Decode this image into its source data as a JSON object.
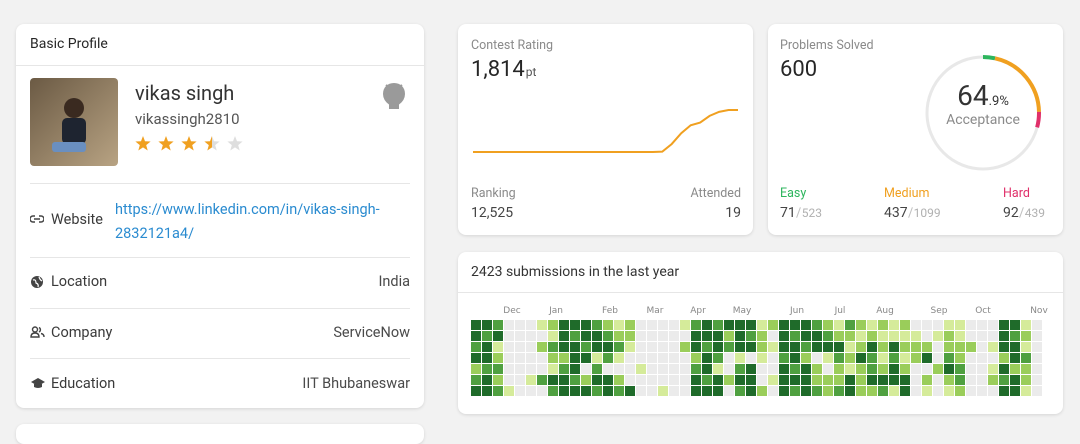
{
  "basic_profile": {
    "title": "Basic Profile",
    "name": "vikas singh",
    "username": "vikassingh2810",
    "stars": 3.5,
    "rows": [
      {
        "label": "Website",
        "value": "https://www.linkedin.com/in/vikas-singh-2832121a4/"
      },
      {
        "label": "Location",
        "value": "India"
      },
      {
        "label": "Company",
        "value": "ServiceNow"
      },
      {
        "label": "Education",
        "value": "IIT Bhubaneswar"
      }
    ]
  },
  "contest": {
    "title": "Contest Rating",
    "rating": "1,814",
    "unit": "pt",
    "ranking_label": "Ranking",
    "ranking": "12,525",
    "attended_label": "Attended",
    "attended": 19,
    "rating_history": [
      1500,
      1500,
      1500,
      1500,
      1500,
      1500,
      1500,
      1500,
      1500,
      1500,
      1500,
      1500,
      1500,
      1500,
      1500,
      1500,
      1500,
      1500,
      1500,
      1500,
      1503,
      1560,
      1640,
      1700,
      1720,
      1770,
      1800,
      1814,
      1814
    ]
  },
  "problems": {
    "title": "Problems Solved",
    "solved": 600,
    "acceptance_int": "64",
    "acceptance_frac": ".9%",
    "acceptance_label": "Acceptance",
    "levels": [
      {
        "name": "Easy",
        "solved": 71,
        "total": 523,
        "color": "#2db55d"
      },
      {
        "name": "Medium",
        "solved": 437,
        "total": 1099,
        "color": "#f0a020"
      },
      {
        "name": "Hard",
        "solved": 92,
        "total": 439,
        "color": "#e0306a"
      }
    ]
  },
  "heatmap": {
    "title": "2423 submissions in the last year",
    "months": [
      "Dec",
      "Jan",
      "Feb",
      "Mar",
      "Apr",
      "May",
      "Jun",
      "Jul",
      "Aug",
      "Sep",
      "Oct",
      "Nov"
    ],
    "colors": [
      "#ebebeb",
      "#d5eb9a",
      "#9acd5a",
      "#4fa040",
      "#1f6b2a"
    ],
    "weeks": [
      [
        4,
        4,
        3,
        4,
        2,
        3,
        4
      ],
      [
        4,
        3,
        4,
        4,
        3,
        4,
        4
      ],
      [
        3,
        4,
        1,
        2,
        3,
        2,
        3
      ],
      [
        0,
        0,
        0,
        0,
        0,
        0,
        1
      ],
      [
        0,
        0,
        0,
        0,
        0,
        0,
        0
      ],
      [
        0,
        0,
        0,
        0,
        0,
        1,
        0
      ],
      [
        1,
        0,
        2,
        0,
        0,
        3,
        0
      ],
      [
        2,
        1,
        3,
        2,
        1,
        4,
        3
      ],
      [
        4,
        4,
        4,
        2,
        3,
        4,
        4
      ],
      [
        4,
        3,
        4,
        4,
        4,
        3,
        4
      ],
      [
        4,
        4,
        3,
        4,
        0,
        2,
        4
      ],
      [
        3,
        4,
        4,
        1,
        3,
        4,
        3
      ],
      [
        2,
        3,
        4,
        3,
        0,
        4,
        4
      ],
      [
        1,
        2,
        3,
        1,
        0,
        2,
        3
      ],
      [
        2,
        2,
        1,
        0,
        0,
        0,
        4
      ],
      [
        0,
        0,
        0,
        0,
        1,
        0,
        0
      ],
      [
        0,
        0,
        0,
        0,
        0,
        0,
        0
      ],
      [
        0,
        0,
        0,
        0,
        0,
        0,
        1
      ],
      [
        0,
        0,
        0,
        0,
        0,
        0,
        0
      ],
      [
        1,
        0,
        2,
        0,
        0,
        0,
        0
      ],
      [
        3,
        4,
        4,
        2,
        3,
        4,
        4
      ],
      [
        4,
        4,
        3,
        4,
        4,
        3,
        4
      ],
      [
        3,
        4,
        4,
        3,
        1,
        4,
        4
      ],
      [
        4,
        2,
        3,
        0,
        0,
        2,
        0
      ],
      [
        4,
        4,
        4,
        1,
        3,
        4,
        3
      ],
      [
        4,
        3,
        4,
        0,
        4,
        4,
        4
      ],
      [
        1,
        2,
        2,
        1,
        0,
        0,
        2
      ],
      [
        2,
        0,
        1,
        0,
        0,
        1,
        0
      ],
      [
        4,
        4,
        4,
        3,
        4,
        4,
        4
      ],
      [
        4,
        3,
        4,
        4,
        3,
        4,
        3
      ],
      [
        4,
        4,
        3,
        2,
        4,
        4,
        4
      ],
      [
        3,
        4,
        4,
        0,
        2,
        2,
        3
      ],
      [
        2,
        3,
        4,
        1,
        0,
        2,
        2
      ],
      [
        1,
        2,
        4,
        3,
        2,
        2,
        3
      ],
      [
        3,
        2,
        1,
        2,
        1,
        4,
        4
      ],
      [
        2,
        1,
        2,
        4,
        2,
        2,
        2
      ],
      [
        1,
        2,
        4,
        3,
        3,
        4,
        2
      ],
      [
        2,
        1,
        2,
        1,
        2,
        4,
        3
      ],
      [
        1,
        1,
        4,
        3,
        4,
        4,
        1
      ],
      [
        2,
        1,
        2,
        1,
        2,
        4,
        4
      ],
      [
        0,
        1,
        2,
        2,
        0,
        0,
        0
      ],
      [
        0,
        0,
        2,
        4,
        0,
        2,
        1
      ],
      [
        0,
        1,
        0,
        0,
        2,
        0,
        0
      ],
      [
        1,
        2,
        2,
        3,
        4,
        2,
        1
      ],
      [
        1,
        1,
        2,
        2,
        3,
        3,
        2
      ],
      [
        0,
        0,
        2,
        0,
        0,
        0,
        0
      ],
      [
        0,
        0,
        0,
        0,
        0,
        0,
        0
      ],
      [
        0,
        0,
        1,
        0,
        1,
        2,
        0
      ],
      [
        4,
        4,
        4,
        2,
        4,
        3,
        4
      ],
      [
        4,
        3,
        4,
        4,
        2,
        4,
        4
      ],
      [
        1,
        2,
        1,
        3,
        2,
        2,
        1
      ],
      [
        0,
        0,
        0,
        0,
        0,
        0,
        0
      ]
    ]
  }
}
